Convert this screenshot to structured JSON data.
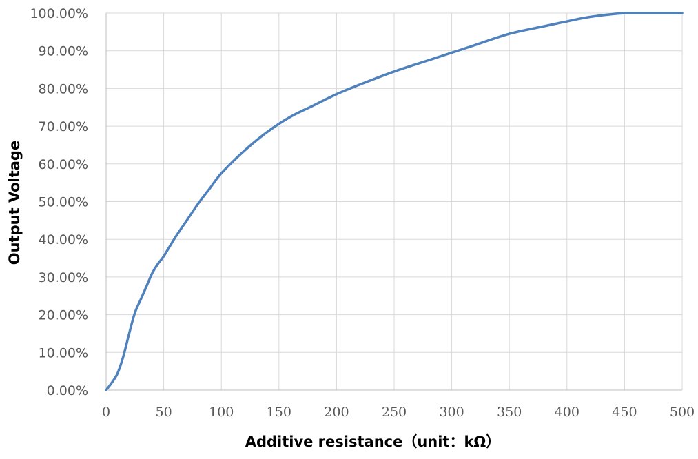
{
  "chart_data": {
    "type": "line",
    "title": "",
    "xlabel": "Additive resistance（unit：kΩ）",
    "ylabel": "Output Voltage",
    "xlim": [
      0,
      500
    ],
    "ylim": [
      0,
      100
    ],
    "x_ticks": [
      0,
      50,
      100,
      150,
      200,
      250,
      300,
      350,
      400,
      450,
      500
    ],
    "x_tick_labels": [
      "0",
      "50",
      "100",
      "150",
      "200",
      "250",
      "300",
      "350",
      "400",
      "450",
      "500"
    ],
    "y_ticks": [
      0,
      10,
      20,
      30,
      40,
      50,
      60,
      70,
      80,
      90,
      100
    ],
    "y_tick_labels": [
      "0.00%",
      "10.00%",
      "20.00%",
      "30.00%",
      "40.00%",
      "50.00%",
      "60.00%",
      "70.00%",
      "80.00%",
      "90.00%",
      "100.00%"
    ],
    "grid": true,
    "legend": "none",
    "series": [
      {
        "color": "#4f81bd",
        "x": [
          0,
          5,
          10,
          15,
          20,
          25,
          30,
          35,
          40,
          45,
          50,
          60,
          70,
          80,
          90,
          100,
          120,
          140,
          160,
          180,
          200,
          220,
          250,
          280,
          300,
          320,
          350,
          380,
          400,
          420,
          450,
          470,
          500
        ],
        "y": [
          0,
          2,
          4.5,
          9,
          15,
          20.5,
          24,
          27.5,
          31,
          33.5,
          35.5,
          40.5,
          45,
          49.5,
          53.5,
          57.5,
          63.5,
          68.5,
          72.5,
          75.5,
          78.5,
          81,
          84.5,
          87.5,
          89.5,
          91.5,
          94.5,
          96.5,
          97.8,
          99,
          100,
          100,
          100
        ]
      }
    ]
  }
}
